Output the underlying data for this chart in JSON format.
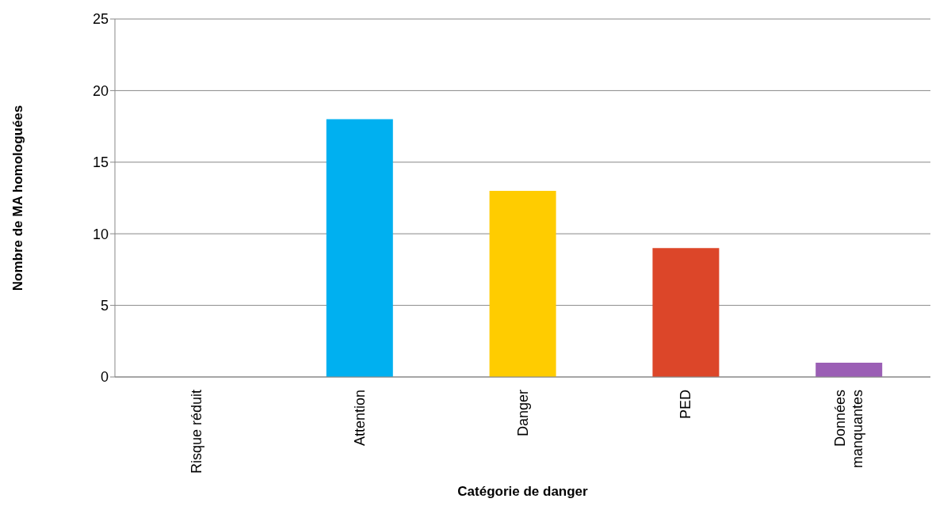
{
  "chart_data": {
    "type": "bar",
    "xlabel": "Catégorie de danger",
    "ylabel": "Nombre de MA homologuées",
    "categories": [
      "Risque réduit",
      "Attention",
      "Danger",
      "PED",
      "Données manquantes"
    ],
    "values": [
      0,
      18,
      13,
      9,
      1
    ],
    "colors": [
      "#7f7f7f",
      "#00b0f0",
      "#ffcc00",
      "#dc4629",
      "#9b5fb5"
    ],
    "ylim": [
      0,
      25
    ],
    "yticks": [
      0,
      5,
      10,
      15,
      20,
      25
    ],
    "grid": "y",
    "legend": false
  }
}
